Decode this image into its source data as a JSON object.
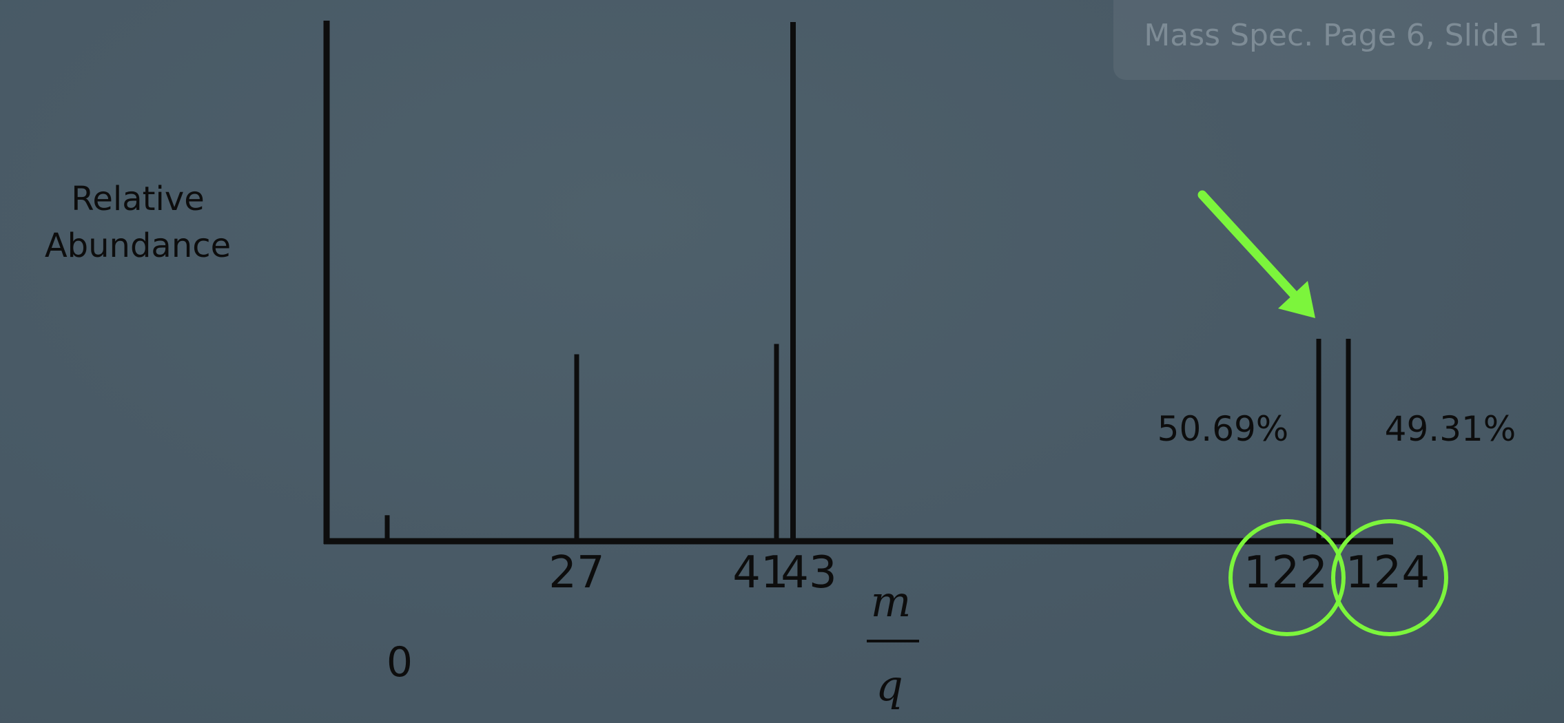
{
  "slide_label": "Mass Spec. Page 6, Slide 1",
  "colors": {
    "background": "#4a5b66",
    "ink": "#0d0d0d",
    "highlight": "#7cf53c"
  },
  "chart_data": {
    "type": "bar",
    "title": "",
    "ylabel_lines": [
      "Relative",
      "Abundance"
    ],
    "xlabel": {
      "numerator": "m",
      "denominator": "q"
    },
    "x_zero_label": "0",
    "peaks": [
      {
        "mz": 15,
        "abundance": 5,
        "label": ""
      },
      {
        "mz": 27,
        "abundance": 36,
        "label": "27"
      },
      {
        "mz": 41,
        "abundance": 38,
        "label": "41"
      },
      {
        "mz": 43,
        "abundance": 100,
        "label": "43"
      },
      {
        "mz": 122,
        "abundance": 39,
        "label": "122",
        "highlighted": true
      },
      {
        "mz": 124,
        "abundance": 39,
        "label": "124",
        "highlighted": true
      }
    ],
    "isotope_percentages": [
      {
        "mz": 122,
        "text": "50.69%"
      },
      {
        "mz": 124,
        "text": "49.31%"
      }
    ],
    "annotations": [
      "green arrow pointing to the 122/124 peak pair",
      "green circles around 122 and 124"
    ]
  }
}
